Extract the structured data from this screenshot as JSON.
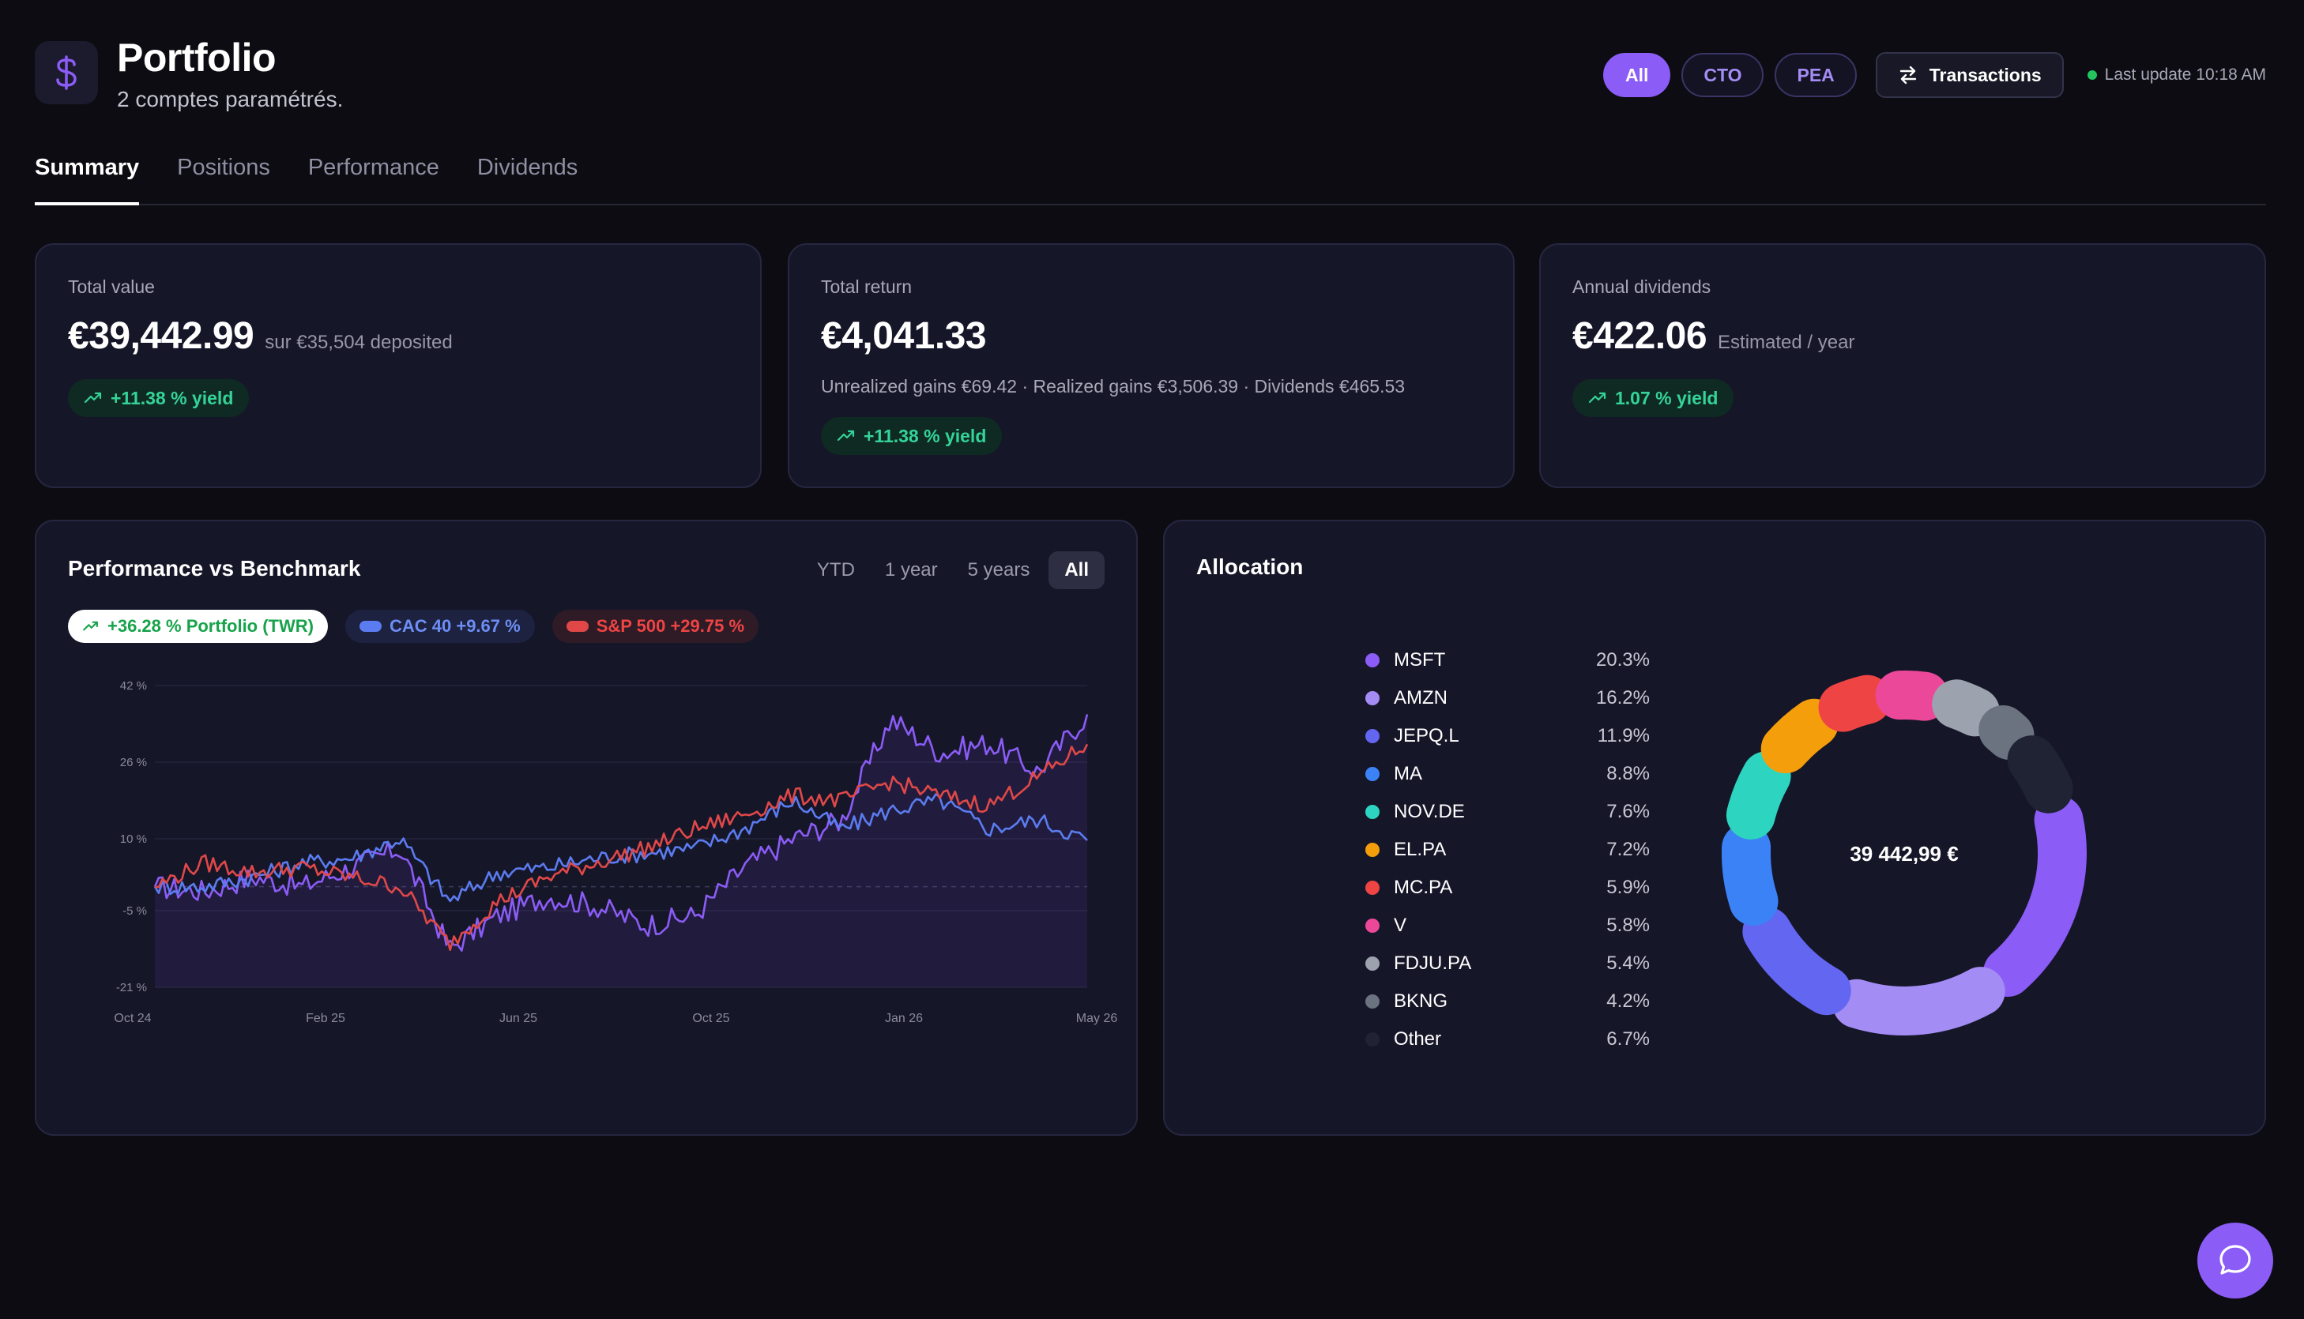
{
  "header": {
    "icon": "dollar-icon",
    "title": "Portfolio",
    "subtitle": "2 comptes paramétrés.",
    "filters": [
      {
        "label": "All",
        "active": true
      },
      {
        "label": "CTO",
        "active": false
      },
      {
        "label": "PEA",
        "active": false
      }
    ],
    "transactions_label": "Transactions",
    "last_update": "Last update 10:18 AM"
  },
  "tabs": [
    "Summary",
    "Positions",
    "Performance",
    "Dividends"
  ],
  "cards": {
    "total_value": {
      "label": "Total value",
      "value": "€39,442.99",
      "sub": "sur €35,504 deposited",
      "badge": "+11.38 % yield"
    },
    "total_return": {
      "label": "Total return",
      "value": "€4,041.33",
      "detail": "Unrealized gains €69.42 · Realized gains €3,506.39 · Dividends €465.53",
      "badge": "+11.38 % yield"
    },
    "annual_dividends": {
      "label": "Annual dividends",
      "value": "€422.06",
      "sub": "Estimated / year",
      "badge": "1.07 % yield"
    }
  },
  "performance": {
    "title": "Performance vs Benchmark",
    "ranges": [
      "YTD",
      "1 year",
      "5 years",
      "All"
    ],
    "active_range": "All",
    "legend": {
      "portfolio": "+36.28 % Portfolio (TWR)",
      "cac": "CAC 40 +9.67 %",
      "sp": "S&P 500 +29.75 %"
    }
  },
  "chart_data": {
    "type": "line",
    "title": "Performance vs Benchmark",
    "x_ticks": [
      "Oct 24",
      "Feb 25",
      "Jun 25",
      "Oct 25",
      "Jan 26",
      "May 26"
    ],
    "y_ticks": [
      "42 %",
      "26 %",
      "10 %",
      "-5 %",
      "-21 %"
    ],
    "ylim": [
      -21,
      42
    ],
    "x": [
      "Oct 24",
      "Nov 24",
      "Dec 24",
      "Jan 25",
      "Feb 25",
      "Mar 25",
      "Apr 25",
      "May 25",
      "Jun 25",
      "Jul 25",
      "Aug 25",
      "Sep 25",
      "Oct 25",
      "Nov 25",
      "Dec 25",
      "Jan 26",
      "Feb 26",
      "Mar 26",
      "Apr 26",
      "May 26"
    ],
    "series": [
      {
        "name": "Portfolio (TWR)",
        "color": "#8b5cf6",
        "values": [
          0,
          -1,
          2,
          0,
          4,
          8,
          -13,
          -6,
          -2,
          -4,
          -8,
          -6,
          4,
          10,
          14,
          35,
          28,
          30,
          24,
          36
        ]
      },
      {
        "name": "CAC 40",
        "color": "#5b7cf0",
        "values": [
          0,
          0,
          2,
          5,
          6,
          10,
          -3,
          3,
          4,
          6,
          7,
          8,
          12,
          18,
          12,
          16,
          18,
          12,
          14,
          9.67
        ]
      },
      {
        "name": "S&P 500",
        "color": "#e04848",
        "values": [
          0,
          5,
          3,
          4,
          2,
          0,
          -12,
          -3,
          2,
          5,
          8,
          12,
          15,
          19,
          18,
          22,
          19,
          17,
          23,
          29.75
        ]
      }
    ]
  },
  "allocation": {
    "title": "Allocation",
    "total": "39 442,99 €",
    "items": [
      {
        "name": "MSFT",
        "pct": "20.3%",
        "value": 20.3,
        "color": "#8b5cf6"
      },
      {
        "name": "AMZN",
        "pct": "16.2%",
        "value": 16.2,
        "color": "#a48cf5"
      },
      {
        "name": "JEPQ.L",
        "pct": "11.9%",
        "value": 11.9,
        "color": "#6366f1"
      },
      {
        "name": "MA",
        "pct": "8.8%",
        "value": 8.8,
        "color": "#3b82f6"
      },
      {
        "name": "NOV.DE",
        "pct": "7.6%",
        "value": 7.6,
        "color": "#2dd4bf"
      },
      {
        "name": "EL.PA",
        "pct": "7.2%",
        "value": 7.2,
        "color": "#f59e0b"
      },
      {
        "name": "MC.PA",
        "pct": "5.9%",
        "value": 5.9,
        "color": "#ef4444"
      },
      {
        "name": "V",
        "pct": "5.8%",
        "value": 5.8,
        "color": "#ec4899"
      },
      {
        "name": "FDJU.PA",
        "pct": "5.4%",
        "value": 5.4,
        "color": "#9ca3af"
      },
      {
        "name": "BKNG",
        "pct": "4.2%",
        "value": 4.2,
        "color": "#6b7280"
      },
      {
        "name": "Other",
        "pct": "6.7%",
        "value": 6.7,
        "color": "#1f2333"
      }
    ]
  },
  "chat_icon": "chat-bubble-icon"
}
